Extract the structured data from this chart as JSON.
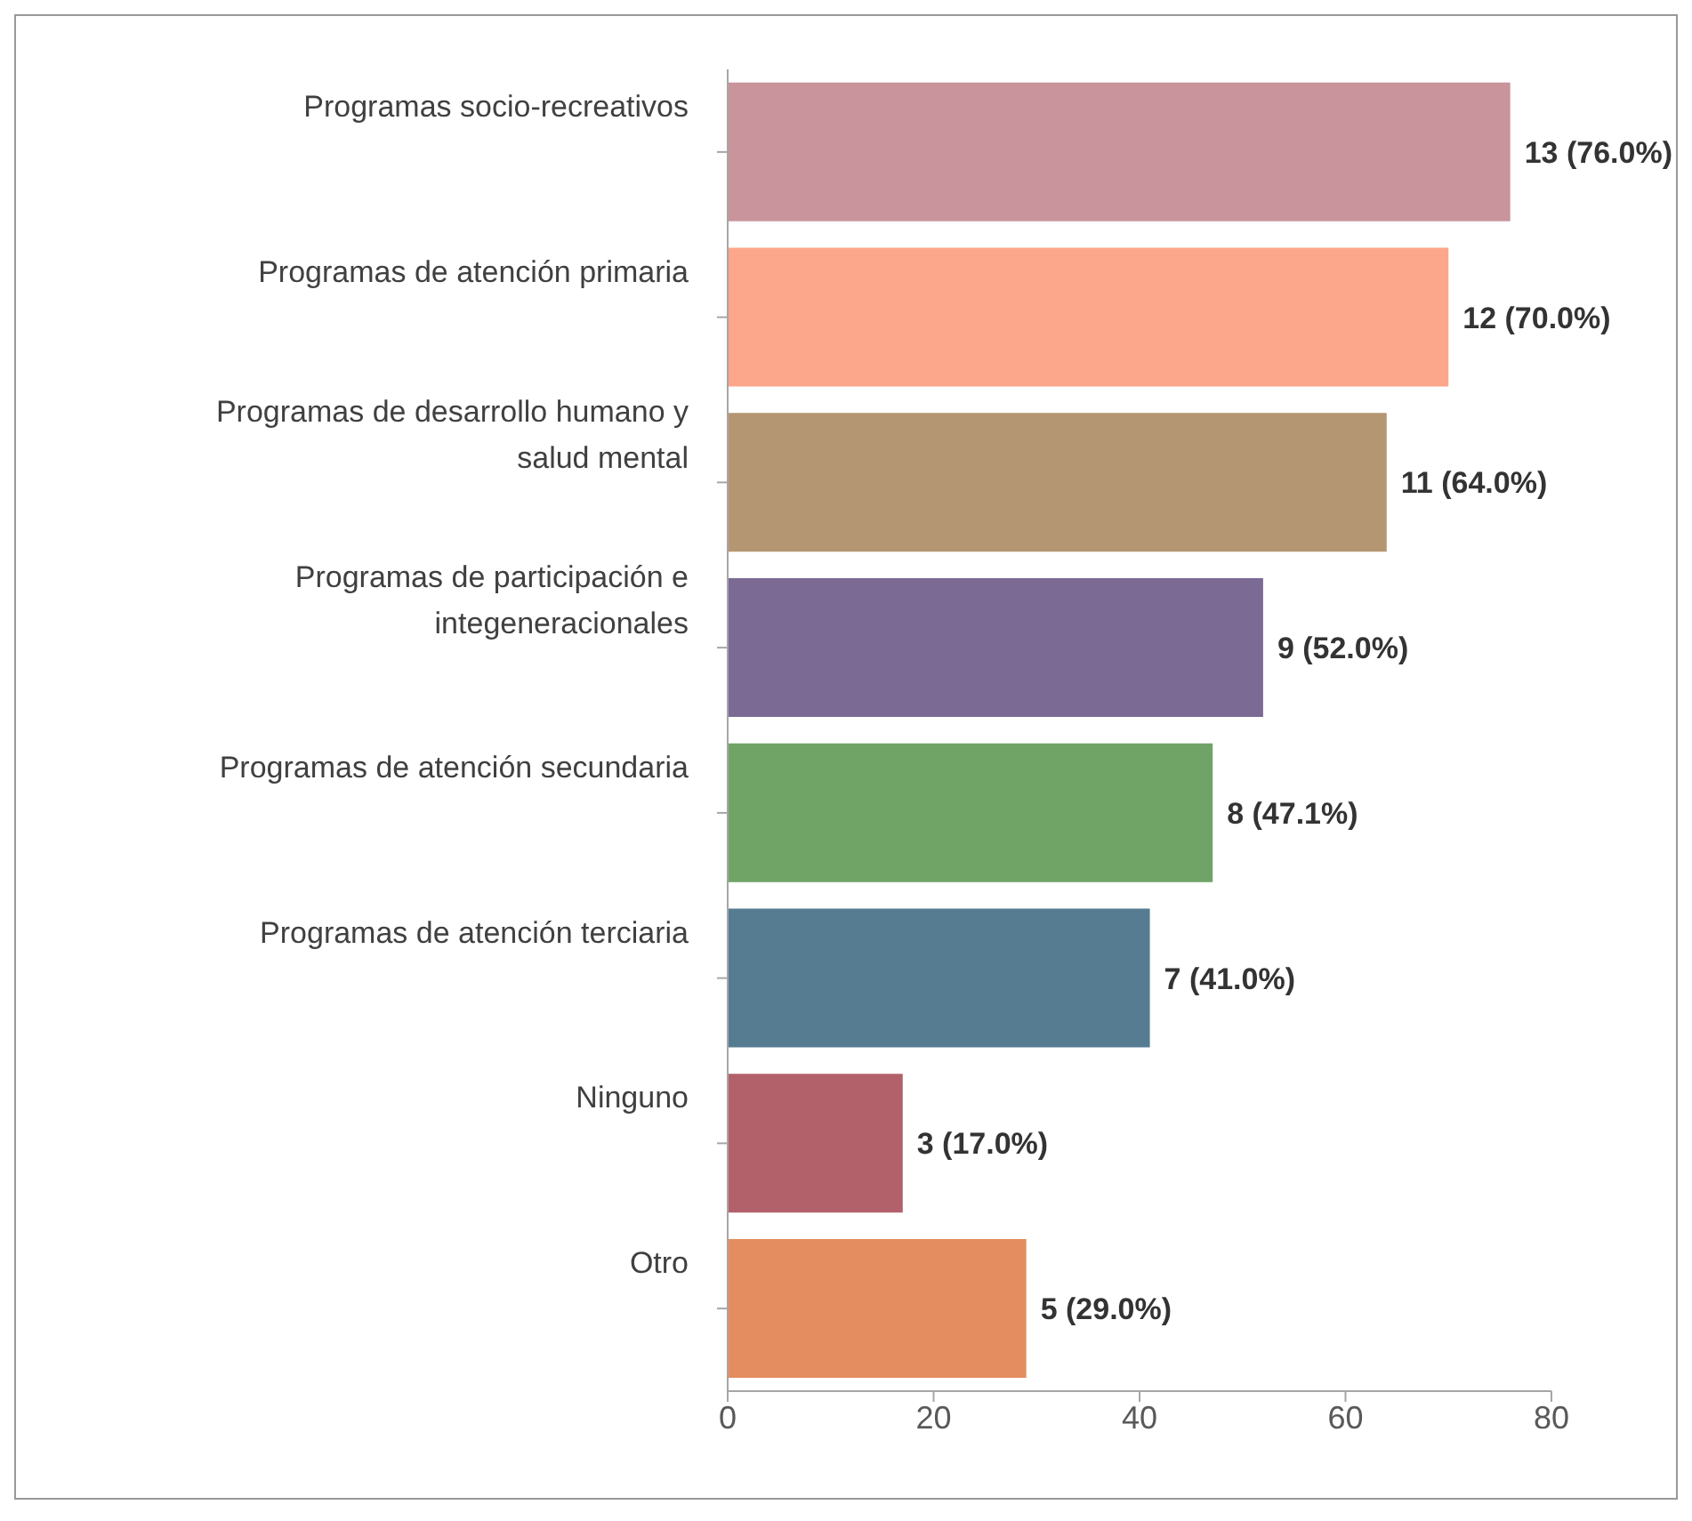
{
  "chart_data": {
    "type": "bar",
    "orientation": "horizontal",
    "categories": [
      "Programas socio-recreativos",
      "Programas de atención primaria",
      "Programas de desarrollo humano y salud mental",
      "Programas de participación e integeneracionales",
      "Programas de atención secundaria",
      "Programas de atención terciaria",
      "Ninguno",
      "Otro"
    ],
    "values": [
      76,
      70,
      64,
      52,
      47.1,
      41,
      17,
      29
    ],
    "colors": [
      "#c9949b",
      "#fca68c",
      "#b59672",
      "#7a6a94",
      "#6fa466",
      "#567c92",
      "#b2606a",
      "#e48d60"
    ],
    "value_labels": [
      "13 (76.0%)",
      "12 (70.0%)",
      "11 (64.0%)",
      "9 (52.0%)",
      "8 (47.1%)",
      "7 (41.0%)",
      "3 (17.0%)",
      "5 (29.0%)"
    ],
    "xlim": [
      0,
      80
    ],
    "xticks": [
      0,
      20,
      40,
      60,
      80
    ],
    "grid": false
  }
}
